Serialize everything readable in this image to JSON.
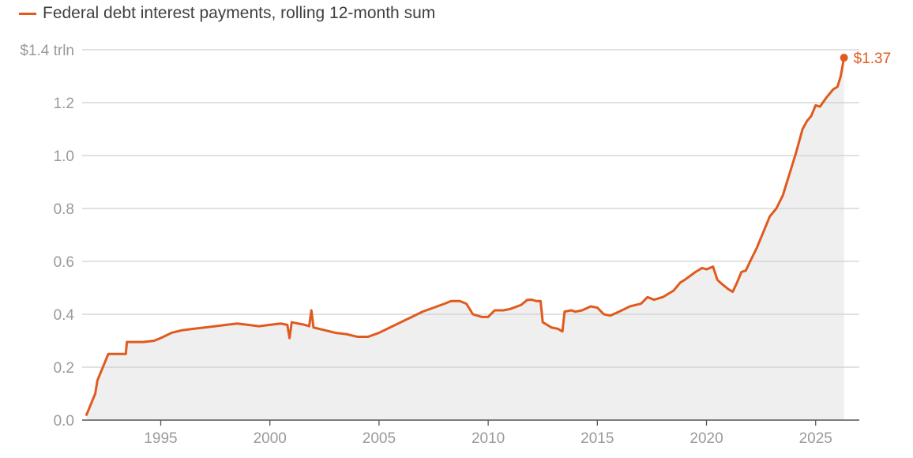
{
  "chart_data": {
    "type": "area",
    "legend": {
      "position": "top-left",
      "entries": [
        "Federal debt interest payments, rolling 12-month sum"
      ]
    },
    "series": [
      {
        "name": "Federal debt interest payments, rolling 12-month sum",
        "color": "#e05a1e",
        "fill_color": "#efefef",
        "points": [
          [
            1991.6,
            0.02
          ],
          [
            1991.8,
            0.06
          ],
          [
            1992.0,
            0.1
          ],
          [
            1992.1,
            0.15
          ],
          [
            1992.3,
            0.19
          ],
          [
            1992.5,
            0.23
          ],
          [
            1992.6,
            0.25
          ],
          [
            1992.9,
            0.25
          ],
          [
            1993.2,
            0.25
          ],
          [
            1993.4,
            0.25
          ],
          [
            1993.45,
            0.295
          ],
          [
            1993.7,
            0.295
          ],
          [
            1994.2,
            0.295
          ],
          [
            1994.7,
            0.3
          ],
          [
            1995.0,
            0.31
          ],
          [
            1995.5,
            0.33
          ],
          [
            1996.0,
            0.34
          ],
          [
            1996.5,
            0.345
          ],
          [
            1997.0,
            0.35
          ],
          [
            1997.5,
            0.355
          ],
          [
            1998.0,
            0.36
          ],
          [
            1998.5,
            0.365
          ],
          [
            1999.0,
            0.36
          ],
          [
            1999.5,
            0.355
          ],
          [
            2000.0,
            0.36
          ],
          [
            2000.5,
            0.365
          ],
          [
            2000.8,
            0.36
          ],
          [
            2000.9,
            0.31
          ],
          [
            2001.0,
            0.37
          ],
          [
            2001.3,
            0.365
          ],
          [
            2001.6,
            0.36
          ],
          [
            2001.8,
            0.355
          ],
          [
            2001.9,
            0.415
          ],
          [
            2002.0,
            0.35
          ],
          [
            2002.5,
            0.34
          ],
          [
            2003.0,
            0.33
          ],
          [
            2003.5,
            0.325
          ],
          [
            2004.0,
            0.315
          ],
          [
            2004.5,
            0.315
          ],
          [
            2005.0,
            0.33
          ],
          [
            2005.5,
            0.35
          ],
          [
            2006.0,
            0.37
          ],
          [
            2006.5,
            0.39
          ],
          [
            2007.0,
            0.41
          ],
          [
            2007.5,
            0.425
          ],
          [
            2008.0,
            0.44
          ],
          [
            2008.3,
            0.45
          ],
          [
            2008.7,
            0.45
          ],
          [
            2009.0,
            0.44
          ],
          [
            2009.3,
            0.4
          ],
          [
            2009.7,
            0.39
          ],
          [
            2010.0,
            0.39
          ],
          [
            2010.3,
            0.415
          ],
          [
            2010.7,
            0.415
          ],
          [
            2011.0,
            0.42
          ],
          [
            2011.5,
            0.435
          ],
          [
            2011.8,
            0.455
          ],
          [
            2012.0,
            0.455
          ],
          [
            2012.2,
            0.45
          ],
          [
            2012.4,
            0.45
          ],
          [
            2012.5,
            0.37
          ],
          [
            2012.7,
            0.36
          ],
          [
            2012.9,
            0.35
          ],
          [
            2013.2,
            0.345
          ],
          [
            2013.4,
            0.335
          ],
          [
            2013.5,
            0.41
          ],
          [
            2013.8,
            0.415
          ],
          [
            2014.0,
            0.41
          ],
          [
            2014.3,
            0.415
          ],
          [
            2014.7,
            0.43
          ],
          [
            2015.0,
            0.425
          ],
          [
            2015.3,
            0.4
          ],
          [
            2015.6,
            0.395
          ],
          [
            2016.0,
            0.41
          ],
          [
            2016.5,
            0.43
          ],
          [
            2017.0,
            0.44
          ],
          [
            2017.3,
            0.465
          ],
          [
            2017.6,
            0.455
          ],
          [
            2018.0,
            0.465
          ],
          [
            2018.5,
            0.49
          ],
          [
            2018.8,
            0.52
          ],
          [
            2019.0,
            0.53
          ],
          [
            2019.5,
            0.56
          ],
          [
            2019.8,
            0.575
          ],
          [
            2020.0,
            0.57
          ],
          [
            2020.3,
            0.58
          ],
          [
            2020.5,
            0.53
          ],
          [
            2020.7,
            0.515
          ],
          [
            2021.0,
            0.495
          ],
          [
            2021.2,
            0.485
          ],
          [
            2021.4,
            0.52
          ],
          [
            2021.6,
            0.56
          ],
          [
            2021.8,
            0.565
          ],
          [
            2022.0,
            0.6
          ],
          [
            2022.3,
            0.65
          ],
          [
            2022.6,
            0.71
          ],
          [
            2022.9,
            0.77
          ],
          [
            2023.2,
            0.8
          ],
          [
            2023.5,
            0.85
          ],
          [
            2023.8,
            0.93
          ],
          [
            2024.1,
            1.01
          ],
          [
            2024.4,
            1.1
          ],
          [
            2024.6,
            1.13
          ],
          [
            2024.8,
            1.15
          ],
          [
            2025.0,
            1.19
          ],
          [
            2025.2,
            1.185
          ],
          [
            2025.5,
            1.22
          ],
          [
            2025.8,
            1.25
          ],
          [
            2026.0,
            1.26
          ],
          [
            2026.15,
            1.3
          ],
          [
            2026.3,
            1.37
          ]
        ]
      }
    ],
    "end_label": "$1.37",
    "xlim": [
      1991.4,
      2027.0
    ],
    "ylim": [
      0,
      1.4
    ],
    "x_ticks": [
      {
        "value": 1995,
        "label": "1995"
      },
      {
        "value": 2000,
        "label": "2000"
      },
      {
        "value": 2005,
        "label": "2005"
      },
      {
        "value": 2010,
        "label": "2010"
      },
      {
        "value": 2015,
        "label": "2015"
      },
      {
        "value": 2020,
        "label": "2020"
      },
      {
        "value": 2025,
        "label": "2025"
      }
    ],
    "y_ticks": [
      {
        "value": 0.0,
        "label": "0.0"
      },
      {
        "value": 0.2,
        "label": "0.2"
      },
      {
        "value": 0.4,
        "label": "0.4"
      },
      {
        "value": 0.6,
        "label": "0.6"
      },
      {
        "value": 0.8,
        "label": "0.8"
      },
      {
        "value": 1.0,
        "label": "1.0"
      },
      {
        "value": 1.2,
        "label": "1.2"
      },
      {
        "value": 1.4,
        "label": "$1.4 trln"
      }
    ],
    "grid": {
      "horizontal": true,
      "vertical": false,
      "color": "#cfcfcf"
    },
    "axis_color": "#555555"
  }
}
